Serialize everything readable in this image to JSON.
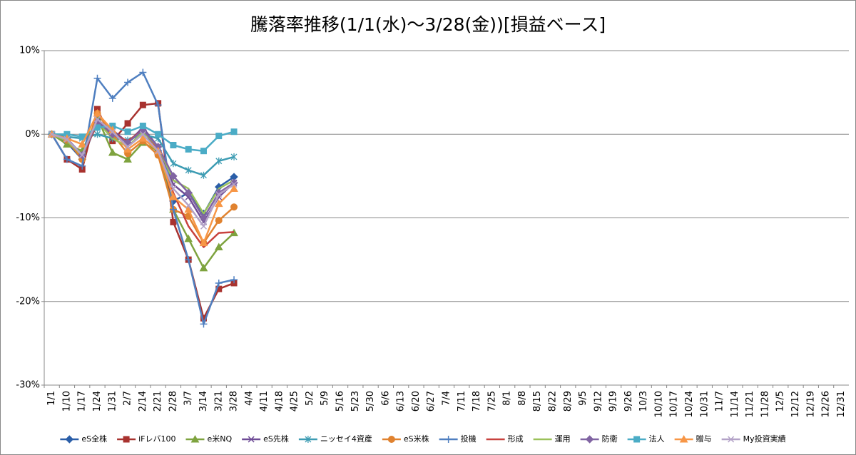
{
  "chart_data": {
    "type": "line",
    "title": "騰落率推移(1/1(水)～3/28(金))[損益ベース]",
    "categories": [
      "1/1",
      "1/10",
      "1/17",
      "1/24",
      "1/31",
      "2/7",
      "2/14",
      "2/21",
      "2/28",
      "3/7",
      "3/14",
      "3/21",
      "3/28",
      "4/4",
      "4/11",
      "4/18",
      "4/25",
      "5/2",
      "5/9",
      "5/16",
      "5/23",
      "5/30",
      "6/6",
      "6/13",
      "6/20",
      "6/27",
      "7/4",
      "7/11",
      "7/18",
      "7/25",
      "8/1",
      "8/8",
      "8/15",
      "8/22",
      "8/29",
      "9/5",
      "9/12",
      "9/19",
      "9/26",
      "10/3",
      "10/10",
      "10/17",
      "10/24",
      "10/31",
      "11/7",
      "11/14",
      "11/21",
      "11/28",
      "12/5",
      "12/12",
      "12/19",
      "12/26",
      "12/31"
    ],
    "ylim": [
      -30,
      10
    ],
    "yticks": [
      {
        "value": -30,
        "label": "-30%"
      },
      {
        "value": -20,
        "label": "-20%"
      },
      {
        "value": -10,
        "label": "-10%"
      },
      {
        "value": 0,
        "label": "0%"
      },
      {
        "value": 10,
        "label": "10%"
      }
    ],
    "grid": true,
    "legend": "bottom",
    "series": [
      {
        "name": "eS全株",
        "color": "#2a5ea8",
        "marker": "diamond",
        "values": [
          0,
          -1,
          -3,
          1.5,
          0,
          -1,
          0.5,
          -2,
          -8,
          -7,
          -9.5,
          -6.3,
          -5.1,
          null,
          null,
          null,
          null,
          null,
          null,
          null,
          null,
          null,
          null,
          null,
          null,
          null,
          null,
          null,
          null,
          null,
          null,
          null,
          null,
          null,
          null,
          null,
          null,
          null,
          null,
          null,
          null,
          null,
          null,
          null,
          null,
          null,
          null,
          null,
          null,
          null,
          null,
          null,
          null
        ]
      },
      {
        "name": "iFレバ100",
        "color": "#a8322f",
        "marker": "square",
        "values": [
          0,
          -3,
          -4.2,
          3,
          -0.8,
          1.3,
          3.5,
          3.7,
          -10.5,
          -15,
          -22,
          -18.5,
          -17.8,
          null,
          null,
          null,
          null,
          null,
          null,
          null,
          null,
          null,
          null,
          null,
          null,
          null,
          null,
          null,
          null,
          null,
          null,
          null,
          null,
          null,
          null,
          null,
          null,
          null,
          null,
          null,
          null,
          null,
          null,
          null,
          null,
          null,
          null,
          null,
          null,
          null,
          null,
          null,
          null
        ]
      },
      {
        "name": "e米NQ",
        "color": "#7ea33f",
        "marker": "triangle",
        "values": [
          0,
          -1.2,
          -2,
          2,
          -2.2,
          -3,
          -1,
          -2,
          -9,
          -12.5,
          -16,
          -13.5,
          -11.8,
          null,
          null,
          null,
          null,
          null,
          null,
          null,
          null,
          null,
          null,
          null,
          null,
          null,
          null,
          null,
          null,
          null,
          null,
          null,
          null,
          null,
          null,
          null,
          null,
          null,
          null,
          null,
          null,
          null,
          null,
          null,
          null,
          null,
          null,
          null,
          null,
          null,
          null,
          null,
          null
        ]
      },
      {
        "name": "eS先株",
        "color": "#6e4b96",
        "marker": "x",
        "values": [
          0,
          -0.5,
          -2.5,
          1.5,
          0.5,
          -1,
          0.8,
          -1.5,
          -6,
          -7.5,
          -10.5,
          -7.5,
          -5.8,
          null,
          null,
          null,
          null,
          null,
          null,
          null,
          null,
          null,
          null,
          null,
          null,
          null,
          null,
          null,
          null,
          null,
          null,
          null,
          null,
          null,
          null,
          null,
          null,
          null,
          null,
          null,
          null,
          null,
          null,
          null,
          null,
          null,
          null,
          null,
          null,
          null,
          null,
          null,
          null
        ]
      },
      {
        "name": "ニッセイ4資産",
        "color": "#3d9cb3",
        "marker": "star",
        "values": [
          0,
          -0.3,
          -0.5,
          0,
          -0.5,
          -0.7,
          0,
          -0.5,
          -3.5,
          -4.3,
          -4.9,
          -3.2,
          -2.7,
          null,
          null,
          null,
          null,
          null,
          null,
          null,
          null,
          null,
          null,
          null,
          null,
          null,
          null,
          null,
          null,
          null,
          null,
          null,
          null,
          null,
          null,
          null,
          null,
          null,
          null,
          null,
          null,
          null,
          null,
          null,
          null,
          null,
          null,
          null,
          null,
          null,
          null,
          null,
          null
        ]
      },
      {
        "name": "eS米株",
        "color": "#e0822f",
        "marker": "circle",
        "values": [
          0,
          -0.7,
          -3,
          2.5,
          0,
          -2.3,
          -0.8,
          -2.5,
          -9,
          -9.8,
          -13,
          -10.3,
          -8.7,
          null,
          null,
          null,
          null,
          null,
          null,
          null,
          null,
          null,
          null,
          null,
          null,
          null,
          null,
          null,
          null,
          null,
          null,
          null,
          null,
          null,
          null,
          null,
          null,
          null,
          null,
          null,
          null,
          null,
          null,
          null,
          null,
          null,
          null,
          null,
          null,
          null,
          null,
          null,
          null
        ]
      },
      {
        "name": "投機",
        "color": "#4f7fc0",
        "marker": "plus",
        "values": [
          0,
          -3,
          -3.8,
          6.7,
          4.3,
          6.2,
          7.4,
          3.5,
          -9,
          -15,
          -22.7,
          -17.8,
          -17.4,
          null,
          null,
          null,
          null,
          null,
          null,
          null,
          null,
          null,
          null,
          null,
          null,
          null,
          null,
          null,
          null,
          null,
          null,
          null,
          null,
          null,
          null,
          null,
          null,
          null,
          null,
          null,
          null,
          null,
          null,
          null,
          null,
          null,
          null,
          null,
          null,
          null,
          null,
          null,
          null
        ]
      },
      {
        "name": "形成",
        "color": "#c8423e",
        "marker": "none",
        "values": [
          0,
          -0.7,
          -2.5,
          1.2,
          0,
          -0.8,
          0.5,
          -1.8,
          -7,
          -11,
          -13.5,
          -11.8,
          -11.7,
          null,
          null,
          null,
          null,
          null,
          null,
          null,
          null,
          null,
          null,
          null,
          null,
          null,
          null,
          null,
          null,
          null,
          null,
          null,
          null,
          null,
          null,
          null,
          null,
          null,
          null,
          null,
          null,
          null,
          null,
          null,
          null,
          null,
          null,
          null,
          null,
          null,
          null,
          null,
          null
        ]
      },
      {
        "name": "運用",
        "color": "#9bc15a",
        "marker": "none",
        "values": [
          0,
          -0.8,
          -2.5,
          1.5,
          -0.5,
          -1.5,
          0.3,
          -1.5,
          -5.5,
          -6.5,
          -9.5,
          -6.5,
          -5.5,
          null,
          null,
          null,
          null,
          null,
          null,
          null,
          null,
          null,
          null,
          null,
          null,
          null,
          null,
          null,
          null,
          null,
          null,
          null,
          null,
          null,
          null,
          null,
          null,
          null,
          null,
          null,
          null,
          null,
          null,
          null,
          null,
          null,
          null,
          null,
          null,
          null,
          null,
          null,
          null
        ]
      },
      {
        "name": "防衛",
        "color": "#8064a2",
        "marker": "diamond",
        "values": [
          0,
          -0.5,
          -2.5,
          1.5,
          0,
          -1,
          0.5,
          -1.5,
          -5,
          -7,
          -10,
          -7,
          -5.8,
          null,
          null,
          null,
          null,
          null,
          null,
          null,
          null,
          null,
          null,
          null,
          null,
          null,
          null,
          null,
          null,
          null,
          null,
          null,
          null,
          null,
          null,
          null,
          null,
          null,
          null,
          null,
          null,
          null,
          null,
          null,
          null,
          null,
          null,
          null,
          null,
          null,
          null,
          null,
          null
        ]
      },
      {
        "name": "法人",
        "color": "#4bacc6",
        "marker": "square",
        "values": [
          0,
          0,
          -0.3,
          0.8,
          1,
          0.3,
          1,
          0,
          -1.3,
          -1.8,
          -2,
          -0.2,
          0.3,
          null,
          null,
          null,
          null,
          null,
          null,
          null,
          null,
          null,
          null,
          null,
          null,
          null,
          null,
          null,
          null,
          null,
          null,
          null,
          null,
          null,
          null,
          null,
          null,
          null,
          null,
          null,
          null,
          null,
          null,
          null,
          null,
          null,
          null,
          null,
          null,
          null,
          null,
          null,
          null
        ]
      },
      {
        "name": "贈与",
        "color": "#f79646",
        "marker": "triangle",
        "values": [
          0,
          -0.5,
          -1.2,
          2.5,
          0.5,
          -1.8,
          -0.5,
          -2,
          -7.5,
          -9,
          -13,
          -8.3,
          -6.5,
          null,
          null,
          null,
          null,
          null,
          null,
          null,
          null,
          null,
          null,
          null,
          null,
          null,
          null,
          null,
          null,
          null,
          null,
          null,
          null,
          null,
          null,
          null,
          null,
          null,
          null,
          null,
          null,
          null,
          null,
          null,
          null,
          null,
          null,
          null,
          null,
          null,
          null,
          null,
          null
        ]
      },
      {
        "name": "My投資実績",
        "color": "#b3a2c7",
        "marker": "x",
        "values": [
          0,
          -0.6,
          -2.5,
          1.8,
          0.3,
          -1.5,
          0,
          -2,
          -6.5,
          -8.5,
          -11,
          -7.2,
          -6,
          null,
          null,
          null,
          null,
          null,
          null,
          null,
          null,
          null,
          null,
          null,
          null,
          null,
          null,
          null,
          null,
          null,
          null,
          null,
          null,
          null,
          null,
          null,
          null,
          null,
          null,
          null,
          null,
          null,
          null,
          null,
          null,
          null,
          null,
          null,
          null,
          null,
          null,
          null,
          null
        ]
      }
    ]
  }
}
